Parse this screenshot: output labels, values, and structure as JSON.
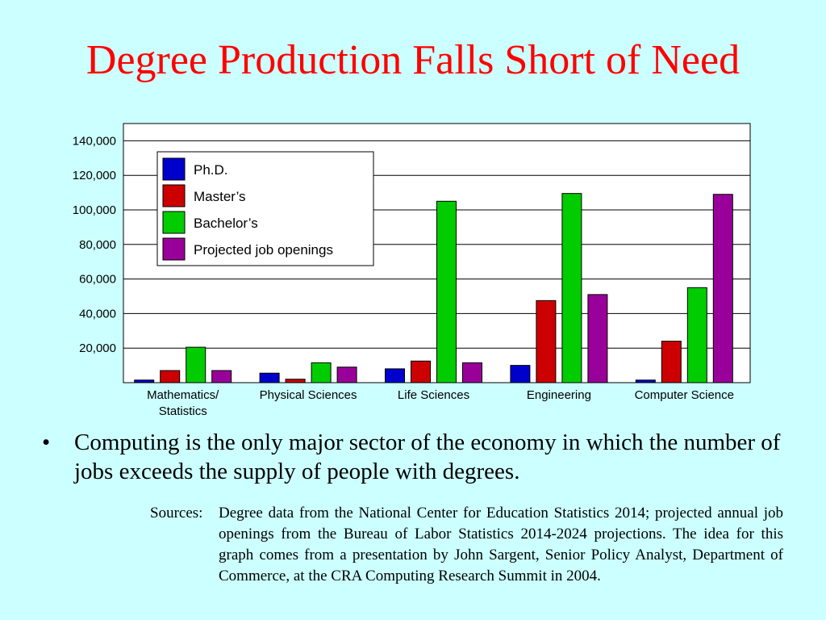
{
  "slide": {
    "title": "Degree Production Falls Short of Need",
    "bullet": "Computing is the only major sector of the economy in which the number of jobs exceeds the supply of people with degrees.",
    "bullet_marker": "•",
    "sources_label": "Sources:",
    "sources_text": "Degree data from the National Center for Education Statistics 2014; projected annual job openings from the Bureau of Labor Statistics 2014-2024 projections.  The idea for this graph comes from a presentation by John Sargent, Senior Policy Analyst, Department of Commerce, at the CRA Computing Research Summit in 2004."
  },
  "colors": {
    "background": "#ccffff",
    "title": "#ff0000"
  },
  "chart_data": {
    "type": "bar",
    "title": "",
    "xlabel": "",
    "ylabel": "",
    "ylim": [
      0,
      150000
    ],
    "y_ticks": [
      20000,
      40000,
      60000,
      80000,
      100000,
      120000,
      140000
    ],
    "y_tick_labels": [
      "20,000",
      "40,000",
      "60,000",
      "80,000",
      "100,000",
      "120,000",
      "140,000"
    ],
    "grid": true,
    "legend_position": "top-left",
    "categories": [
      [
        "Mathematics/",
        "Statistics"
      ],
      [
        "Physical Sciences"
      ],
      [
        "Life Sciences"
      ],
      [
        "Engineering"
      ],
      [
        "Computer Science"
      ]
    ],
    "series": [
      {
        "name": "Ph.D.",
        "color": "#0000cc",
        "values": [
          1500,
          5500,
          8000,
          10000,
          1500
        ]
      },
      {
        "name": "Master’s",
        "color": "#cc0000",
        "values": [
          7000,
          2000,
          12500,
          47500,
          24000
        ]
      },
      {
        "name": "Bachelor’s",
        "color": "#00cc00",
        "values": [
          20500,
          11500,
          105000,
          109500,
          55000
        ]
      },
      {
        "name": "Projected job openings",
        "color": "#990099",
        "values": [
          7000,
          9000,
          11500,
          51000,
          109000
        ]
      }
    ]
  }
}
